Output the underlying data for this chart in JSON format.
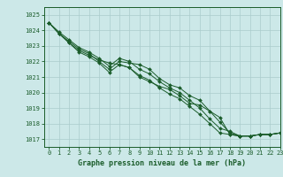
{
  "xlabel": "Graphe pression niveau de la mer (hPa)",
  "bg_color": "#cce8e8",
  "grid_color": "#aacccc",
  "line_color": "#1a5c2a",
  "marker_color": "#1a5c2a",
  "xlim": [
    -0.5,
    23
  ],
  "ylim": [
    1016.5,
    1025.5
  ],
  "yticks": [
    1017,
    1018,
    1019,
    1020,
    1021,
    1022,
    1023,
    1024,
    1025
  ],
  "xticks": [
    0,
    1,
    2,
    3,
    4,
    5,
    6,
    7,
    8,
    9,
    10,
    11,
    12,
    13,
    14,
    15,
    16,
    17,
    18,
    19,
    20,
    21,
    22,
    23
  ],
  "series": [
    [
      1024.5,
      1023.8,
      1023.2,
      1022.7,
      1022.4,
      1022.1,
      1021.9,
      1021.8,
      1021.6,
      1021.0,
      1020.7,
      1020.4,
      1020.2,
      1019.8,
      1019.3,
      1019.2,
      1018.8,
      1018.4,
      1017.3,
      1017.2,
      1017.2,
      1017.3,
      1017.3,
      1017.4
    ],
    [
      1024.5,
      1023.8,
      1023.3,
      1022.8,
      1022.5,
      1022.0,
      1021.5,
      1022.0,
      1021.9,
      1021.8,
      1021.5,
      1020.9,
      1020.5,
      1020.3,
      1019.8,
      1019.5,
      1018.8,
      1018.1,
      1017.4,
      1017.2,
      1017.2,
      1017.3,
      1017.3,
      1017.4
    ],
    [
      1024.5,
      1023.9,
      1023.4,
      1022.9,
      1022.6,
      1022.2,
      1021.7,
      1022.2,
      1022.0,
      1021.5,
      1021.2,
      1020.7,
      1020.3,
      1020.0,
      1019.5,
      1019.0,
      1018.3,
      1017.7,
      1017.5,
      1017.2,
      1017.2,
      1017.3,
      1017.3,
      1017.4
    ],
    [
      1024.5,
      1023.8,
      1023.2,
      1022.6,
      1022.3,
      1021.9,
      1021.3,
      1021.8,
      1021.6,
      1021.1,
      1020.8,
      1020.3,
      1019.9,
      1019.6,
      1019.1,
      1018.6,
      1018.0,
      1017.4,
      1017.3,
      1017.2,
      1017.2,
      1017.3,
      1017.3,
      1017.4
    ]
  ],
  "label_fontsize": 5.5,
  "tick_fontsize": 5.0,
  "xlabel_fontsize": 6.0
}
